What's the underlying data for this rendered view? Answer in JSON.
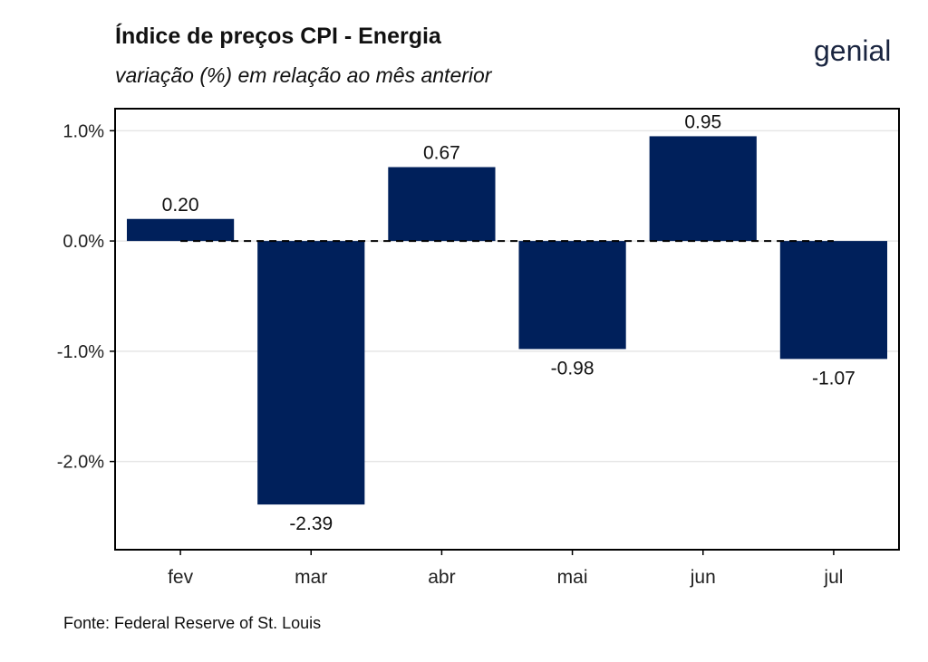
{
  "header": {
    "title": "Índice de preços CPI - Energia",
    "subtitle": "variação (%) em relação ao mês anterior",
    "logo_text": "genial"
  },
  "footer": {
    "source": "Fonte: Federal Reserve of St. Louis"
  },
  "colors": {
    "bar": "#00205b",
    "grid": "#e6e6e6",
    "axis": "#000000"
  },
  "chart_data": {
    "type": "bar",
    "title": "Índice de preços CPI - Energia",
    "subtitle": "variação (%) em relação ao mês anterior",
    "categories": [
      "fev",
      "mar",
      "abr",
      "mai",
      "jun",
      "jul"
    ],
    "values": [
      0.2,
      -2.39,
      0.67,
      -0.98,
      0.95,
      -1.07
    ],
    "value_labels": [
      "0.20",
      "-2.39",
      "0.67",
      "-0.98",
      "0.95",
      "-1.07"
    ],
    "y_ticks": [
      1.0,
      0.0,
      -1.0,
      -2.0
    ],
    "y_tick_labels": [
      "1.0%",
      "0.0%",
      "-1.0%",
      "-2.0%"
    ],
    "ylim": [
      -2.8,
      1.2
    ],
    "grid": "horizontal",
    "zero_line": "dashed",
    "legend": "none"
  }
}
